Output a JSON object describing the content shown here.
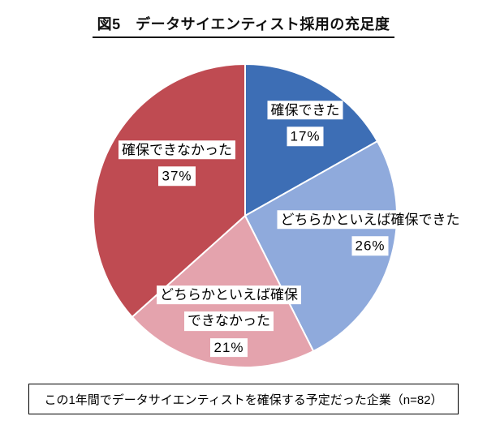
{
  "figure": {
    "title": "図5　データサイエンティスト採用の充足度"
  },
  "chart_data": {
    "type": "pie",
    "title": "図5　データサイエンティスト採用の充足度",
    "start_angle_deg": 0,
    "direction": "clockwise",
    "legend_position": "none",
    "labels_on_chart": true,
    "slices": [
      {
        "label": "確保できた",
        "line1": "確保できた",
        "line2": "",
        "value": 17,
        "pct_label": "17%",
        "color": "#3D6EB5"
      },
      {
        "label": "どちらかといえば確保できた",
        "line1": "どちらかといえば確保できた",
        "line2": "",
        "value": 26,
        "pct_label": "26%",
        "color": "#8FAADC"
      },
      {
        "label": "どちらかといえば確保できなかった",
        "line1": "どちらかといえば確保",
        "line2": "できなかった",
        "value": 21,
        "pct_label": "21%",
        "color": "#E4A3AD"
      },
      {
        "label": "確保できなかった",
        "line1": "確保できなかった",
        "line2": "",
        "value": 37,
        "pct_label": "37%",
        "color": "#BF4B52"
      }
    ],
    "note": "この1年間でデータサイエンティストを確保する予定だった企業（n=82）"
  }
}
